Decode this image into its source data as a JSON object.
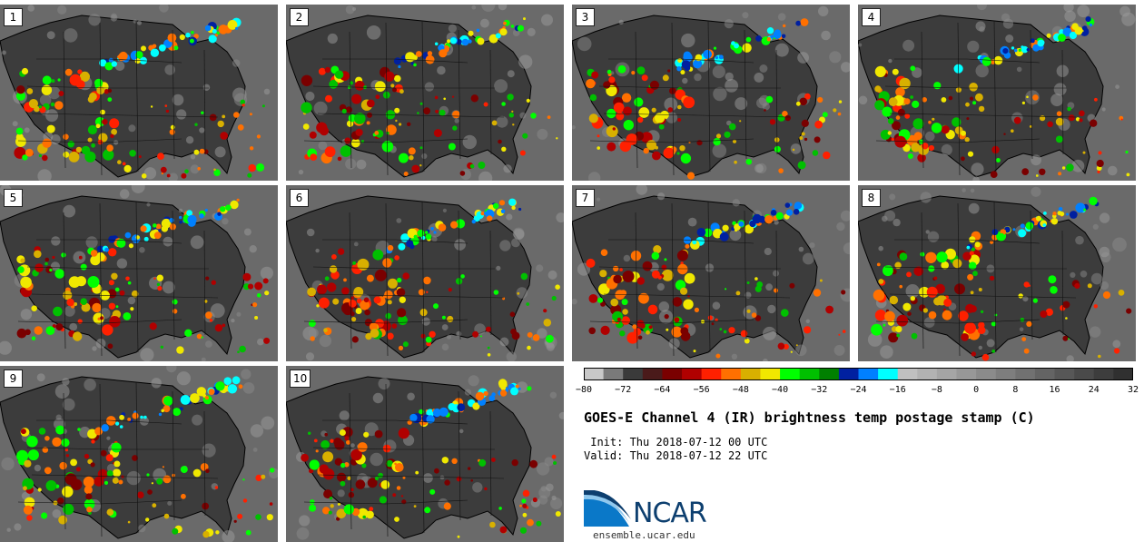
{
  "panels": [
    {
      "label": "1"
    },
    {
      "label": "2"
    },
    {
      "label": "3"
    },
    {
      "label": "4"
    },
    {
      "label": "5"
    },
    {
      "label": "6"
    },
    {
      "label": "7"
    },
    {
      "label": "8"
    },
    {
      "label": "9"
    },
    {
      "label": "10"
    }
  ],
  "colorbar": {
    "colors": [
      "#c8c8c8",
      "#7a7a7a",
      "#3a3a3a",
      "#4a1a1a",
      "#7a0000",
      "#b00000",
      "#ff2000",
      "#ff7000",
      "#d8b000",
      "#f0e800",
      "#00ff00",
      "#00c000",
      "#008000",
      "#0020a0",
      "#0080ff",
      "#00ffff",
      "#c0c0c0",
      "#b2b2b2",
      "#a5a5a5",
      "#989898",
      "#8b8b8b",
      "#7e7e7e",
      "#717171",
      "#646464",
      "#575757",
      "#4a4a4a",
      "#3d3d3d",
      "#303030"
    ],
    "ticks": [
      "−80",
      "−72",
      "−64",
      "−56",
      "−48",
      "−40",
      "−32",
      "−24",
      "−16",
      "−8",
      "0",
      "8",
      "16",
      "24",
      "32"
    ]
  },
  "title": "GOES-E Channel 4 (IR) brightness temp postage stamp (C)",
  "init": " Init: Thu 2018-07-12 00 UTC",
  "valid": "Valid: Thu 2018-07-12 22 UTC",
  "logo": {
    "text": "NCAR",
    "site": "ensemble.ucar.edu"
  }
}
